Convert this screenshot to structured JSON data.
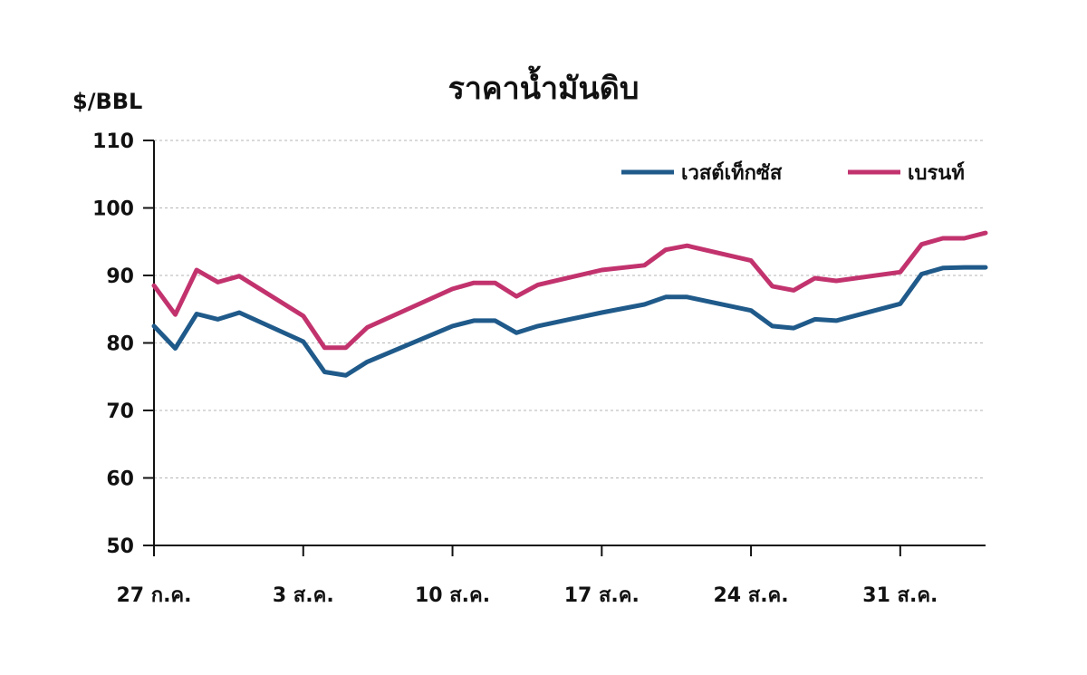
{
  "chart_data": {
    "type": "line",
    "title": "ราคาน้ำมันดิบ",
    "ylabel": "$/BBL",
    "xlabel": "",
    "ylim": [
      50,
      110
    ],
    "yticks": [
      50,
      60,
      70,
      80,
      90,
      100,
      110
    ],
    "xticks": [
      {
        "x": 0,
        "label": "27 ก.ค."
      },
      {
        "x": 7,
        "label": "3 ส.ค."
      },
      {
        "x": 14,
        "label": "10 ส.ค."
      },
      {
        "x": 21,
        "label": "17 ส.ค."
      },
      {
        "x": 28,
        "label": "24 ส.ค."
      },
      {
        "x": 35,
        "label": "31 ส.ค."
      }
    ],
    "x_max": 39,
    "grid": true,
    "legend_position": "top-right",
    "series": [
      {
        "name": "เวสต์เท็กซัส",
        "color": "#1f5a8a",
        "points": [
          [
            0,
            82.5
          ],
          [
            1,
            79.2
          ],
          [
            2,
            84.3
          ],
          [
            3,
            83.5
          ],
          [
            4,
            84.5
          ],
          [
            7,
            80.2
          ],
          [
            8,
            75.7
          ],
          [
            9,
            75.2
          ],
          [
            10,
            77.2
          ],
          [
            14,
            82.5
          ],
          [
            15,
            83.3
          ],
          [
            16,
            83.3
          ],
          [
            17,
            81.5
          ],
          [
            18,
            82.5
          ],
          [
            21,
            84.5
          ],
          [
            23,
            85.7
          ],
          [
            24,
            86.8
          ],
          [
            25,
            86.8
          ],
          [
            28,
            84.8
          ],
          [
            29,
            82.5
          ],
          [
            30,
            82.2
          ],
          [
            31,
            83.5
          ],
          [
            32,
            83.3
          ],
          [
            35,
            85.8
          ],
          [
            36,
            90.2
          ],
          [
            37,
            91.1
          ],
          [
            38,
            91.2
          ],
          [
            39,
            91.2
          ]
        ]
      },
      {
        "name": "เบรนท์",
        "color": "#c2336e",
        "points": [
          [
            0,
            88.5
          ],
          [
            1,
            84.2
          ],
          [
            2,
            90.8
          ],
          [
            3,
            89.0
          ],
          [
            4,
            89.9
          ],
          [
            7,
            84.0
          ],
          [
            8,
            79.3
          ],
          [
            9,
            79.3
          ],
          [
            10,
            82.3
          ],
          [
            14,
            88.0
          ],
          [
            15,
            88.9
          ],
          [
            16,
            88.9
          ],
          [
            17,
            86.9
          ],
          [
            18,
            88.6
          ],
          [
            21,
            90.8
          ],
          [
            23,
            91.5
          ],
          [
            24,
            93.8
          ],
          [
            25,
            94.4
          ],
          [
            28,
            92.2
          ],
          [
            29,
            88.4
          ],
          [
            30,
            87.8
          ],
          [
            31,
            89.6
          ],
          [
            32,
            89.2
          ],
          [
            35,
            90.5
          ],
          [
            36,
            94.6
          ],
          [
            37,
            95.5
          ],
          [
            38,
            95.5
          ],
          [
            39,
            96.3
          ]
        ]
      }
    ]
  }
}
